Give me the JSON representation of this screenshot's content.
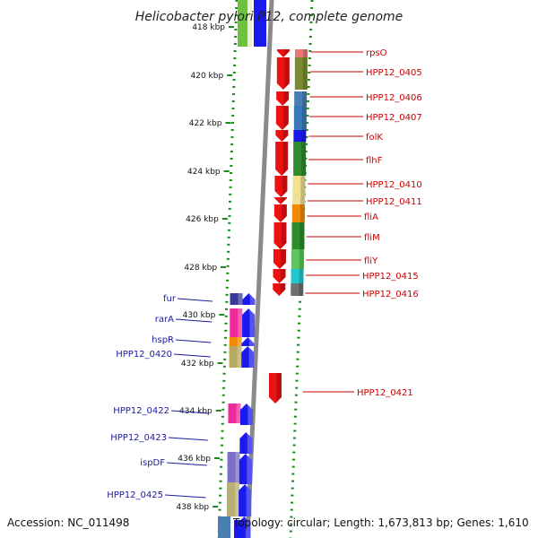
{
  "title": "Helicobacter pylori P12, complete genome",
  "footer": {
    "accession": "Accession: NC_011498",
    "summary": "Topology: circular; Length: 1,673,813 bp; Genes: 1,610"
  },
  "ticks": [
    "418 kbp",
    "420 kbp",
    "422 kbp",
    "424 kbp",
    "426 kbp",
    "428 kbp",
    "430 kbp",
    "432 kbp",
    "434 kbp",
    "436 kbp",
    "438 kbp"
  ],
  "right_genes": [
    {
      "label": "rpsO",
      "color": "#e87878"
    },
    {
      "label": "HPP12_0405",
      "color": "#7a8a30"
    },
    {
      "label": "HPP12_0406",
      "color": "#4a7fb5"
    },
    {
      "label": "HPP12_0407",
      "color": "#3a7ab8"
    },
    {
      "label": "folK",
      "color": "#1a1aee"
    },
    {
      "label": "flhF",
      "color": "#2e8b2e"
    },
    {
      "label": "HPP12_0410",
      "color": "#f0e090"
    },
    {
      "label": "HPP12_0411",
      "color": "#f0e0a0"
    },
    {
      "label": "fliA",
      "color": "#f08a00"
    },
    {
      "label": "fliM",
      "color": "#2e8b2e"
    },
    {
      "label": "fliY",
      "color": "#5ac85a"
    },
    {
      "label": "HPP12_0415",
      "color": "#20c8d0"
    },
    {
      "label": "HPP12_0416",
      "color": "#707070"
    },
    {
      "label": "HPP12_0421",
      "color": "#ee2020"
    }
  ],
  "left_genes": [
    {
      "label": "fur",
      "color": "#3a3a9a"
    },
    {
      "label": "rarA",
      "color": "#ee2a9a"
    },
    {
      "label": "hspR",
      "color": "#f08a00"
    },
    {
      "label": "HPP12_0420",
      "color": "#b8a860"
    },
    {
      "label": "HPP12_0422",
      "color": "#ee2a9a"
    },
    {
      "label": "HPP12_0423",
      "color": "#2020ee"
    },
    {
      "label": "ispDF",
      "color": "#7a70c8"
    },
    {
      "label": "HPP12_0425",
      "color": "#b8b070"
    }
  ],
  "colors": {
    "forward_strand": "#ee1111",
    "reverse_strand": "#1a1aee",
    "backbone": "#8a8a8a",
    "ruler": "#1a8a1a",
    "right_label": "#cc0000",
    "left_label": "#1a1aa0"
  }
}
